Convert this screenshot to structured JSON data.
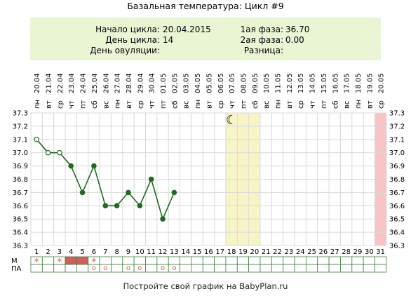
{
  "header": {
    "title": "Базальная температура: Цикл #9"
  },
  "info": {
    "cycle_start_label": "Начало цикла:",
    "cycle_start_value": "20.04.2015",
    "cycle_day_label": "День цикла:",
    "cycle_day_value": "14",
    "ovulation_day_label": "День овуляции:",
    "ovulation_day_value": "",
    "phase1_label": "1ая фаза:",
    "phase1_value": "36.70",
    "phase2_label": "2ая фаза:",
    "phase2_value": "0.00",
    "difference_label": "Разница:",
    "difference_value": ""
  },
  "chart_data": {
    "type": "line",
    "title": "Базальная температура: Цикл #9",
    "days": [
      1,
      2,
      3,
      4,
      5,
      6,
      7,
      8,
      9,
      10,
      11,
      12,
      13,
      14,
      15,
      16,
      17,
      18,
      19,
      20,
      21,
      22,
      23,
      24,
      25,
      26,
      27,
      28,
      29,
      30,
      31
    ],
    "weekdays": [
      "пн",
      "вт",
      "ср",
      "чт",
      "пт",
      "сб",
      "вс",
      "пн",
      "вт",
      "ср",
      "чт",
      "пт",
      "сб",
      "вс",
      "пн",
      "вт",
      "ср",
      "чт",
      "пт",
      "сб",
      "вс",
      "пн",
      "вт",
      "ср",
      "чт",
      "пт",
      "сб",
      "вс",
      "пн",
      "вт",
      "ср"
    ],
    "dates": [
      "20.04",
      "21.04",
      "22.04",
      "23.04",
      "24.04",
      "25.04",
      "26.04",
      "27.04",
      "28.04",
      "29.04",
      "30.04",
      "01.05",
      "02.05",
      "03.05",
      "04.05",
      "05.05",
      "06.05",
      "07.05",
      "08.05",
      "09.05",
      "10.05",
      "11.05",
      "12.05",
      "13.05",
      "14.05",
      "15.05",
      "16.05",
      "17.05",
      "18.05",
      "19.05",
      "20.05"
    ],
    "temperatures": [
      37.1,
      37.0,
      37.0,
      36.9,
      36.7,
      36.9,
      36.6,
      36.6,
      36.7,
      36.6,
      36.8,
      36.5,
      36.7
    ],
    "open_markers": [
      1,
      2,
      3
    ],
    "ylim": [
      36.3,
      37.3
    ],
    "yticks": [
      "37.3",
      "37.2",
      "37.1",
      "37.0",
      "36.9",
      "36.8",
      "36.7",
      "36.6",
      "36.5",
      "36.4",
      "36.3"
    ],
    "highlight_days_yellow": [
      18,
      19,
      20
    ],
    "highlight_days_pink": [
      31
    ],
    "moon_day": 18,
    "moon_symbol": "☾",
    "colors": {
      "line": "#1f6a1f",
      "marker": "#1f6a1f",
      "grid": "#d9d9d9",
      "yellow": "#f7f5c5",
      "pink": "#f8c4c4",
      "menses": "#d95a5a",
      "star": "#d95a5a",
      "circle": "#d95a5a",
      "row_border": "#3f7f3f"
    },
    "menses_row_label": "М",
    "intercourse_row_label": "ПА",
    "menses_stars": [
      1,
      3,
      6
    ],
    "menses_filled": [
      4,
      5
    ],
    "star_symbol": "*",
    "circle_symbol": "o",
    "intercourse_circles": [
      6,
      7,
      9,
      10,
      12,
      13
    ]
  },
  "footer": {
    "text": "Постройте свой график на BabyPlan.ru"
  }
}
